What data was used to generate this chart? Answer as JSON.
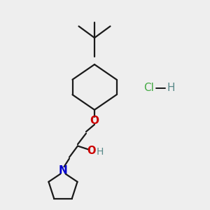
{
  "background_color": "#eeeeee",
  "bond_color": "#1a1a1a",
  "oxygen_color": "#cc0000",
  "nitrogen_color": "#0000cc",
  "oh_h_color": "#5a8a8a",
  "cl_color": "#44aa44",
  "h_color": "#5a8a8a",
  "line_width": 1.6,
  "figsize": [
    3.0,
    3.0
  ],
  "dpi": 100,
  "xlim": [
    0,
    10
  ],
  "ylim": [
    0,
    10
  ]
}
